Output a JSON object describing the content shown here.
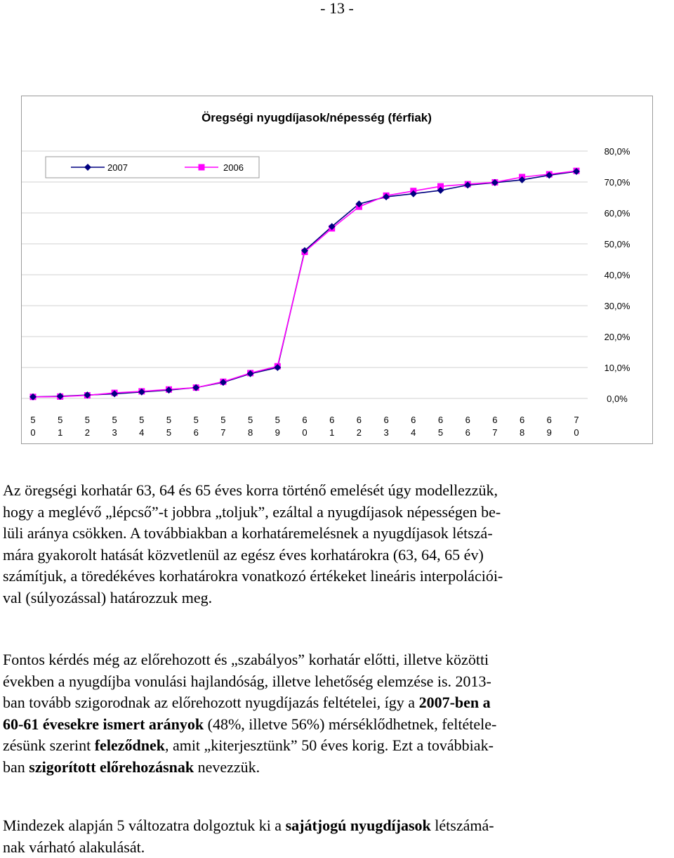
{
  "page_number": "- 13 -",
  "chart_data": {
    "type": "line",
    "title": "Öregségi nyugdíjasok/népesség (férfiak)",
    "x": [
      50,
      51,
      52,
      53,
      54,
      55,
      56,
      57,
      58,
      59,
      60,
      61,
      62,
      63,
      64,
      65,
      66,
      67,
      68,
      69,
      70
    ],
    "x_tick_labels": [
      [
        "5",
        "0"
      ],
      [
        "5",
        "1"
      ],
      [
        "5",
        "2"
      ],
      [
        "5",
        "3"
      ],
      [
        "5",
        "4"
      ],
      [
        "5",
        "5"
      ],
      [
        "5",
        "6"
      ],
      [
        "5",
        "7"
      ],
      [
        "5",
        "8"
      ],
      [
        "5",
        "9"
      ],
      [
        "6",
        "0"
      ],
      [
        "6",
        "1"
      ],
      [
        "6",
        "2"
      ],
      [
        "6",
        "3"
      ],
      [
        "6",
        "4"
      ],
      [
        "6",
        "5"
      ],
      [
        "6",
        "6"
      ],
      [
        "6",
        "7"
      ],
      [
        "6",
        "8"
      ],
      [
        "6",
        "9"
      ],
      [
        "7",
        "0"
      ]
    ],
    "y_tick_labels": [
      "0,0%",
      "10,0%",
      "20,0%",
      "30,0%",
      "40,0%",
      "50,0%",
      "60,0%",
      "70,0%",
      "80,0%"
    ],
    "ylim": [
      0,
      80
    ],
    "y_axis_side": "right",
    "grid": true,
    "legend_position": "top-left",
    "series": [
      {
        "name": "2007",
        "color": "#000080",
        "marker": "diamond",
        "values": [
          0.5,
          0.7,
          1.1,
          1.5,
          2.1,
          2.7,
          3.5,
          5.2,
          8.0,
          10.0,
          47.8,
          55.6,
          62.9,
          65.2,
          66.2,
          67.3,
          69.0,
          69.8,
          70.7,
          72.2,
          73.4
        ]
      },
      {
        "name": "2006",
        "color": "#FF00FF",
        "marker": "square",
        "values": [
          0.5,
          0.6,
          1.0,
          1.8,
          2.3,
          2.9,
          3.5,
          5.4,
          8.2,
          10.4,
          47.4,
          55.0,
          62.0,
          65.6,
          67.1,
          68.6,
          69.3,
          69.9,
          71.6,
          72.5,
          73.6
        ]
      }
    ]
  },
  "paragraphs": {
    "p1": {
      "l1": "Az öregségi korhatár 63, 64 és 65 éves korra történő emelését úgy modellezzük,",
      "l2": "hogy a meglévő „lépcső”-t jobbra „toljuk”, ezáltal a nyugdíjasok népességen be-",
      "l3": "lüli aránya csökken. A továbbiakban a korhatáremelésnek a nyugdíjasok létszá-",
      "l4": "mára gyakorolt hatását közvetlenül az egész éves korhatárokra (63, 64, 65 év)",
      "l5": "számítjuk, a töredékéves korhatárokra vonatkozó értékeket lineáris interpolációi-",
      "l6": "val (súlyozással) határozzuk meg."
    },
    "p2": {
      "l1": "Fontos kérdés még az előrehozott és „szabályos” korhatár előtti, illetve közötti",
      "l2": "években a nyugdíjba vonulási hajlandóság, illetve lehetőség elemzése is. 2013-",
      "l3a": "ban tovább szigorodnak az előrehozott nyugdíjazás feltételei, így a ",
      "l3b": "2007-ben a",
      "l4a": "60-61 évesekre ismert arányok",
      "l4b": " (48%, illetve 56%) mérséklődhetnek, feltétele-",
      "l5a": "zésünk szerint ",
      "l5b": "feleződnek",
      "l5c": ", amit „kiterjesztünk” 50 éves korig. Ezt a továbbiak-",
      "l6a": "ban ",
      "l6b": "szigorított előrehozásnak",
      "l6c": " nevezzük."
    },
    "p3": {
      "l1a": "Mindezek alapján 5 változatra dolgoztuk ki a ",
      "l1b": "sajátjogú nyugdíjasok",
      "l1c": " létszámá-",
      "l2": "nak várható alakulását."
    }
  }
}
